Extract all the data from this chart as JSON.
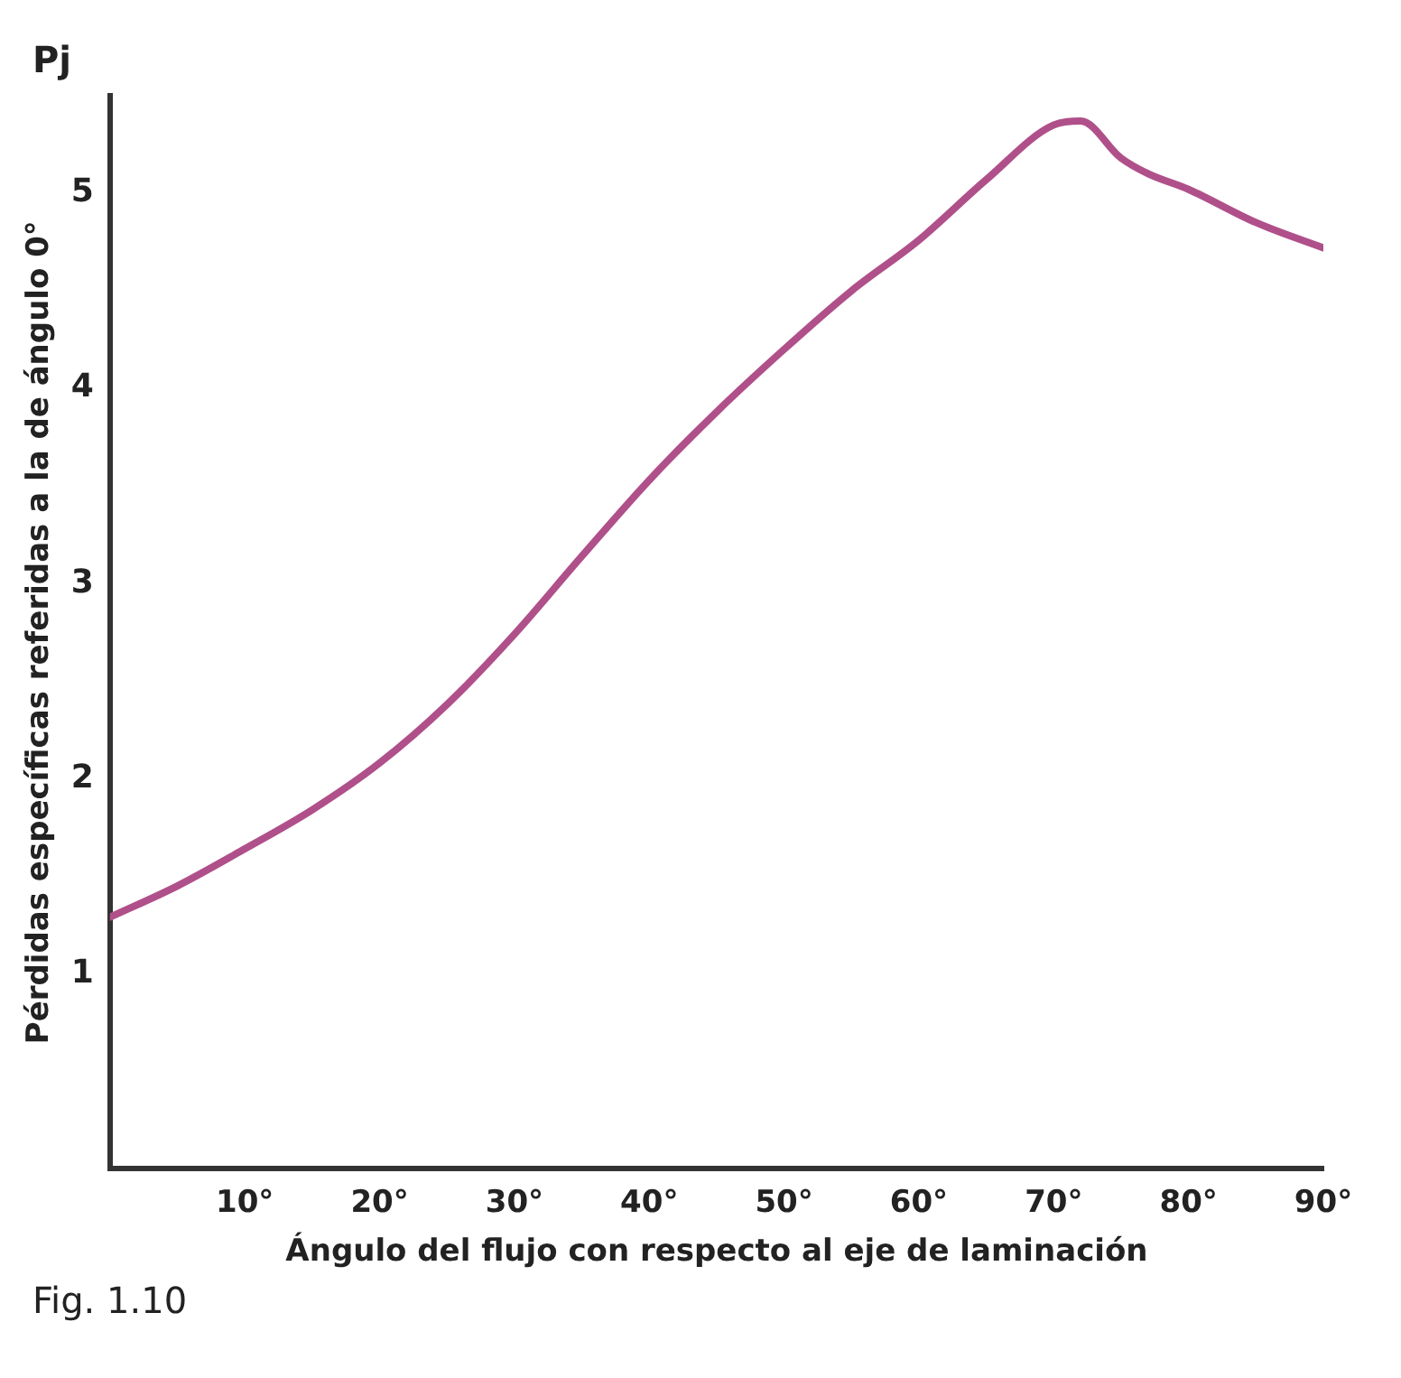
{
  "chart_data": {
    "type": "line",
    "title": "Fig. 1.10",
    "xlabel": "Ángulo del flujo con respecto al eje de laminación",
    "ylabel": "Pérdidas específicas referidas a la de ángulo 0°",
    "annotations": [
      "Pj"
    ],
    "x": [
      0,
      5,
      10,
      15,
      20,
      25,
      30,
      35,
      40,
      45,
      50,
      55,
      60,
      65,
      70,
      72,
      75,
      77,
      80,
      85,
      90
    ],
    "series": [
      {
        "color": "#b0508a",
        "values": [
          1.29,
          1.45,
          1.64,
          1.84,
          2.08,
          2.38,
          2.74,
          3.14,
          3.53,
          3.88,
          4.2,
          4.5,
          4.76,
          5.07,
          5.35,
          5.37,
          5.18,
          5.1,
          5.02,
          4.85,
          4.72
        ]
      }
    ],
    "xlim": [
      0,
      90
    ],
    "xticks": [
      {
        "value": 10,
        "label": "10°"
      },
      {
        "value": 20,
        "label": "20°"
      },
      {
        "value": 30,
        "label": "30°"
      },
      {
        "value": 40,
        "label": "40°"
      },
      {
        "value": 50,
        "label": "50°"
      },
      {
        "value": 60,
        "label": "60°"
      },
      {
        "value": 70,
        "label": "70°"
      },
      {
        "value": 80,
        "label": "80°"
      },
      {
        "value": 90,
        "label": "90°"
      }
    ],
    "ylim": [
      0,
      5.5
    ],
    "yticks": [
      1,
      2,
      3,
      4,
      5
    ],
    "grid": false,
    "legend": false,
    "marker": "none",
    "line_style": "solid"
  }
}
